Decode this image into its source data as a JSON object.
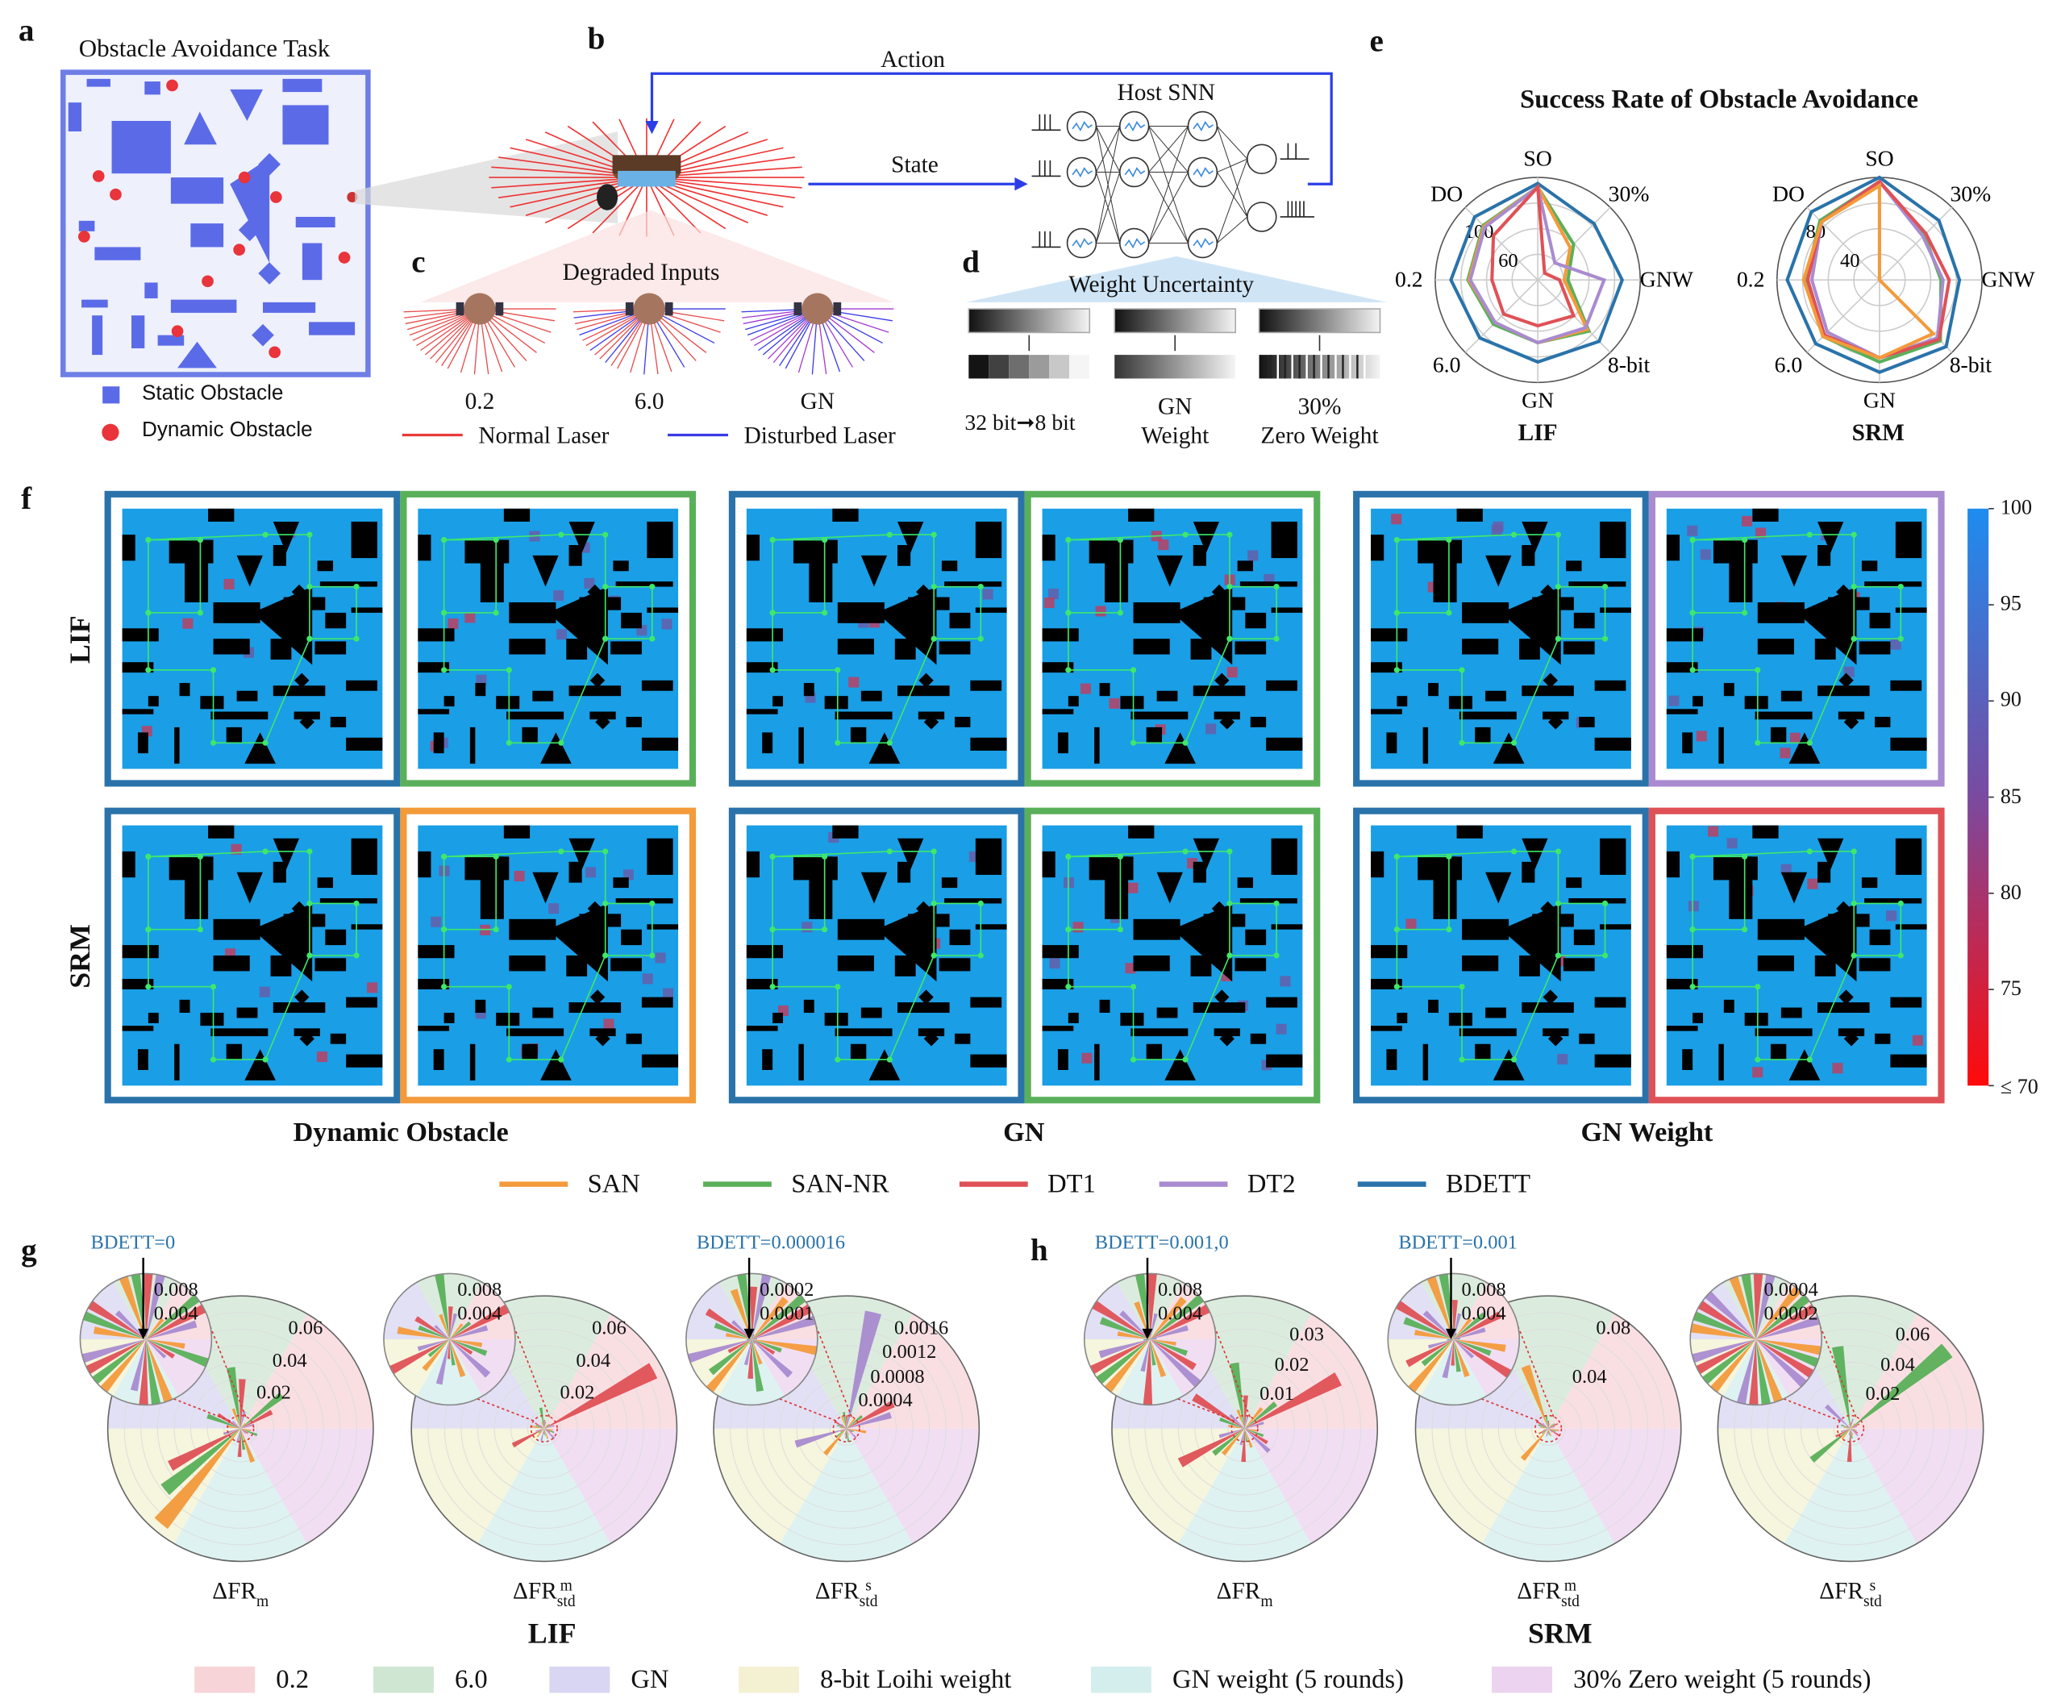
{
  "panel_labels": {
    "a": "a",
    "b": "b",
    "c": "c",
    "d": "d",
    "e": "e",
    "f": "f",
    "g": "g",
    "h": "h"
  },
  "panel_a": {
    "title": "Obstacle Avoidance Task",
    "legend": [
      "Static Obstacle",
      "Dynamic Obstacle"
    ],
    "colors": {
      "static": "#5b6be8",
      "dynamic": "#e8343a"
    }
  },
  "panel_b": {
    "action": "Action",
    "state": "State",
    "host": "Host SNN"
  },
  "panel_c": {
    "title": "Degraded Inputs",
    "labels": [
      "0.2",
      "6.0",
      "GN"
    ],
    "legend": [
      "Normal Laser",
      "Disturbed Laser"
    ],
    "colors": {
      "normal": "#e83a3a",
      "disturbed": "#3a3ae8"
    }
  },
  "panel_d": {
    "title": "Weight Uncertainty",
    "labels": [
      [
        "32 bit",
        "8 bit"
      ],
      [
        "GN",
        "Weight"
      ],
      [
        "30%",
        "Zero Weight"
      ]
    ]
  },
  "panel_f": {
    "rows": [
      "LIF",
      "SRM"
    ],
    "groups": [
      "Dynamic Obstacle",
      "GN",
      "GN Weight"
    ],
    "borders": [
      [
        "BDETT",
        "SAN-NR",
        "BDETT",
        "SAN-NR",
        "BDETT",
        "DT2"
      ],
      [
        "BDETT",
        "SAN",
        "BDETT",
        "SAN-NR",
        "BDETT",
        "DT1"
      ]
    ],
    "colorbar": {
      "ticks": [
        "100",
        "95",
        "90",
        "85",
        "80",
        "75",
        "≤ 70"
      ],
      "range": [
        70,
        100
      ]
    }
  },
  "methods": [
    {
      "name": "SAN",
      "color": "#f39a3b"
    },
    {
      "name": "SAN-NR",
      "color": "#5ab05a"
    },
    {
      "name": "DT1",
      "color": "#df5156"
    },
    {
      "name": "DT2",
      "color": "#a98bd0"
    },
    {
      "name": "BDETT",
      "color": "#2a73aa"
    }
  ],
  "chart_data": [
    {
      "type": "radar",
      "title": "Success Rate of Obstacle Avoidance",
      "name": "LIF",
      "axes": [
        "SO",
        "30%",
        "GNW",
        "8-bit",
        "GN",
        "6.0",
        "0.2",
        "DO"
      ],
      "ticks": [
        "60",
        "100"
      ],
      "rlim": [
        20,
        105
      ],
      "series": [
        {
          "name": "BDETT",
          "values": [
            100,
            86,
            90,
            92,
            88,
            88,
            92,
            94
          ]
        },
        {
          "name": "SAN-NR",
          "values": [
            97,
            62,
            45,
            80,
            72,
            72,
            78,
            84
          ]
        },
        {
          "name": "SAN",
          "values": [
            97,
            58,
            42,
            78,
            72,
            70,
            77,
            83
          ]
        },
        {
          "name": "DT2",
          "values": [
            97,
            40,
            75,
            76,
            72,
            70,
            76,
            82
          ]
        },
        {
          "name": "DT1",
          "values": [
            97,
            28,
            38,
            62,
            58,
            60,
            58,
            72
          ]
        }
      ]
    },
    {
      "type": "radar",
      "name": "SRM",
      "axes": [
        "SO",
        "30%",
        "GNW",
        "8-bit",
        "GN",
        "6.0",
        "0.2",
        "DO"
      ],
      "ticks": [
        "40",
        "80"
      ],
      "rlim": [
        0,
        100
      ],
      "series": [
        {
          "name": "BDETT",
          "values": [
            100,
            82,
            78,
            92,
            90,
            88,
            90,
            94
          ]
        },
        {
          "name": "SAN-NR",
          "values": [
            96,
            62,
            60,
            84,
            80,
            78,
            72,
            82
          ]
        },
        {
          "name": "DT2",
          "values": [
            96,
            60,
            62,
            80,
            76,
            72,
            66,
            80
          ]
        },
        {
          "name": "DT1",
          "values": [
            96,
            64,
            68,
            82,
            76,
            76,
            70,
            80
          ]
        },
        {
          "name": "SAN",
          "values": [
            92,
            0,
            0,
            74,
            76,
            78,
            74,
            80
          ]
        }
      ]
    },
    {
      "type": "polar-bar",
      "panel": "g",
      "label": {
        "base": "ΔFR",
        "sup": "",
        "sub": "m"
      },
      "ticks": [
        "0.02",
        "0.04",
        "0.06"
      ],
      "tick_values": [
        0.02,
        0.04,
        0.06
      ],
      "rmax": 0.075,
      "inset_ticks": [
        "0.004",
        "0.008"
      ],
      "inset_tick_values": [
        0.004,
        0.008
      ],
      "inset_rmax": 0.01,
      "annotation": "BDETT=0",
      "values": [
        0.004,
        0.03,
        0.02,
        0.008,
        0,
        0.012,
        0.035,
        0.028,
        0.01,
        0,
        0.008,
        0.02,
        0.015,
        0.006,
        0,
        0.07,
        0.055,
        0.045,
        0.01,
        0,
        0.02,
        0.012,
        0.016,
        0.008,
        0,
        0.006,
        0.01,
        0.005,
        0.004,
        0
      ]
    },
    {
      "type": "polar-bar",
      "panel": "g",
      "label": {
        "base": "ΔFR",
        "sup": "m",
        "sub": "std"
      },
      "ticks": [
        "0.02",
        "0.04",
        "0.06"
      ],
      "tick_values": [
        0.02,
        0.04,
        0.06
      ],
      "rmax": 0.075,
      "inset_ticks": [
        "0.004",
        "0.008"
      ],
      "inset_tick_values": [
        0.004,
        0.008
      ],
      "inset_rmax": 0.01,
      "annotation": "",
      "values": [
        0.003,
        0.004,
        0.07,
        0.006,
        0,
        0.004,
        0.012,
        0.005,
        0.004,
        0,
        0.008,
        0.005,
        0.006,
        0.003,
        0,
        0.006,
        0.004,
        0.02,
        0.005,
        0,
        0.006,
        0.004,
        0.003,
        0.007,
        0,
        0.005,
        0.006,
        0.004,
        0.008,
        0
      ]
    },
    {
      "type": "polar-bar",
      "panel": "g",
      "label": {
        "base": "ΔFR",
        "sup": "s",
        "sub": "std"
      },
      "ticks": [
        "0.0004",
        "0.0008",
        "0.0012",
        "0.0016"
      ],
      "tick_values": [
        0.0004,
        0.0008,
        0.0012,
        0.0016
      ],
      "rmax": 0.002,
      "inset_ticks": [
        "0.0001",
        "0.0002"
      ],
      "inset_tick_values": [
        0.0001,
        0.0002
      ],
      "inset_rmax": 0.00025,
      "annotation": "BDETT=0.000016",
      "values": [
        0.0002,
        0.0003,
        0.0008,
        0.0007,
        2e-05,
        0.0002,
        0.00025,
        0.0002,
        0.0018,
        2e-05,
        0.0001,
        0.00015,
        0.0002,
        0.0001,
        2e-05,
        0.0005,
        0.0002,
        0.0001,
        0.0008,
        2e-05,
        0.0001,
        0.0002,
        0.00015,
        0.0001,
        2e-05,
        0.0003,
        0.00012,
        0.0001,
        0.0002,
        2e-05
      ]
    },
    {
      "type": "polar-bar",
      "panel": "h",
      "label": {
        "base": "ΔFR",
        "sup": "",
        "sub": "m"
      },
      "ticks": [
        "0.01",
        "0.02",
        "0.03"
      ],
      "tick_values": [
        0.01,
        0.02,
        0.03
      ],
      "rmax": 0.04,
      "inset_ticks": [
        "0.004",
        "0.008"
      ],
      "inset_tick_values": [
        0.004,
        0.008
      ],
      "inset_rmax": 0.01,
      "annotation": "BDETT=0.001,0",
      "values": [
        0.008,
        0.012,
        0.032,
        0.006,
        0.001,
        0.006,
        0.02,
        0.01,
        0.004,
        0,
        0.005,
        0.008,
        0.018,
        0.006,
        0,
        0.01,
        0.012,
        0.022,
        0.008,
        0.001,
        0.006,
        0.004,
        0.01,
        0.005,
        0,
        0.004,
        0.006,
        0.008,
        0.01,
        0
      ]
    },
    {
      "type": "polar-bar",
      "panel": "h",
      "label": {
        "base": "ΔFR",
        "sup": "m",
        "sub": "std"
      },
      "ticks": [
        "0.04",
        "0.08"
      ],
      "tick_values": [
        0.04,
        0.08
      ],
      "rmax": 0.1,
      "inset_ticks": [
        "0.004",
        "0.008"
      ],
      "inset_tick_values": [
        0.004,
        0.008
      ],
      "inset_rmax": 0.01,
      "annotation": "BDETT=0.001",
      "values": [
        0.004,
        0.006,
        0.008,
        0.005,
        0.001,
        0.05,
        0.01,
        0.006,
        0.004,
        0.001,
        0.006,
        0.008,
        0.01,
        0.006,
        0,
        0.03,
        0.006,
        0.008,
        0.004,
        0.001,
        0.006,
        0.005,
        0.004,
        0.006,
        0,
        0.008,
        0.006,
        0.01,
        0.004,
        0
      ]
    },
    {
      "type": "polar-bar",
      "panel": "h",
      "label": {
        "base": "ΔFR",
        "sup": "s",
        "sub": "std"
      },
      "ticks": [
        "0.02",
        "0.04",
        "0.06"
      ],
      "tick_values": [
        0.02,
        0.04,
        0.06
      ],
      "rmax": 0.08,
      "inset_ticks": [
        "0.0002",
        "0.0004"
      ],
      "inset_tick_values": [
        0.0002,
        0.0004
      ],
      "inset_rmax": 0.0005,
      "annotation": "",
      "values": [
        0.004,
        0.075,
        0.006,
        0.004,
        0,
        0.003,
        0.05,
        0.004,
        0.006,
        0,
        0.004,
        0.006,
        0.003,
        0.02,
        0,
        0.008,
        0.03,
        0.01,
        0.006,
        0,
        0.004,
        0.006,
        0.02,
        0.004,
        0,
        0.003,
        0.004,
        0.005,
        0.006,
        0
      ]
    }
  ],
  "panel_gh": {
    "models": [
      "LIF",
      "SRM"
    ],
    "conditions": [
      {
        "name": "0.2",
        "color": "#f7d4d8"
      },
      {
        "name": "6.0",
        "color": "#cfe6d3"
      },
      {
        "name": "GN",
        "color": "#d8d6f2"
      },
      {
        "name": "8-bit Loihi weight",
        "color": "#f3f1d2"
      },
      {
        "name": "GN weight (5 rounds)",
        "color": "#d3eeed"
      },
      {
        "name": "30% Zero weight (5 rounds)",
        "color": "#ecd3ef"
      }
    ]
  }
}
